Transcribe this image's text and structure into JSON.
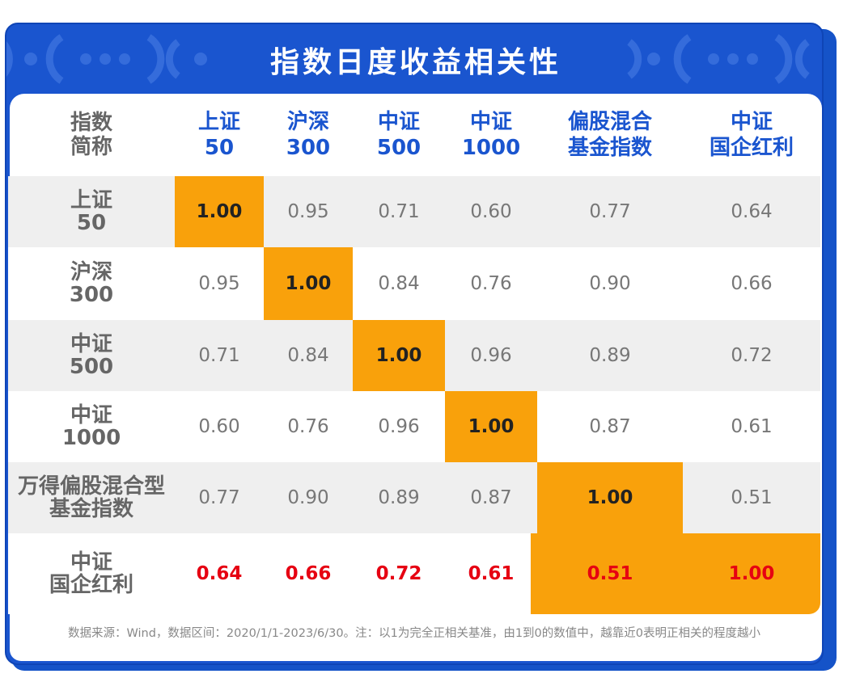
{
  "title": "指数日度收益相关性",
  "corner_header": [
    "指数",
    "简称"
  ],
  "colors": {
    "brand_blue": "#1a55cf",
    "highlight_orange": "#f9a10b",
    "emphasis_red": "#e60012",
    "band_grey": "#efefef",
    "label_grey": "#666666"
  },
  "chart_data": {
    "type": "heatmap",
    "title": "指数日度收益相关性",
    "columns": [
      [
        "上证",
        "50"
      ],
      [
        "沪深",
        "300"
      ],
      [
        "中证",
        "500"
      ],
      [
        "中证",
        "1000"
      ],
      [
        "偏股混合",
        "基金指数"
      ],
      [
        "中证",
        "国企红利"
      ]
    ],
    "rows": [
      [
        "上证",
        "50"
      ],
      [
        "沪深",
        "300"
      ],
      [
        "中证",
        "500"
      ],
      [
        "中证",
        "1000"
      ],
      [
        "万得偏股混合型",
        "基金指数"
      ],
      [
        "中证",
        "国企红利"
      ]
    ],
    "values": [
      [
        "1.00",
        "0.95",
        "0.71",
        "0.60",
        "0.77",
        "0.64"
      ],
      [
        "0.95",
        "1.00",
        "0.84",
        "0.76",
        "0.90",
        "0.66"
      ],
      [
        "0.71",
        "0.84",
        "1.00",
        "0.96",
        "0.89",
        "0.72"
      ],
      [
        "0.60",
        "0.76",
        "0.96",
        "1.00",
        "0.87",
        "0.61"
      ],
      [
        "0.77",
        "0.90",
        "0.89",
        "0.87",
        "1.00",
        "0.51"
      ],
      [
        "0.64",
        "0.66",
        "0.72",
        "0.61",
        "0.51",
        "1.00"
      ]
    ],
    "highlight": "diagonal",
    "emphasized_row": 5
  },
  "footnote": "数据来源：Wind，数据区间：2020/1/1-2023/6/30。注：以1为完全正相关基准，由1到0的数值中，越靠近0表明正相关的程度越小"
}
